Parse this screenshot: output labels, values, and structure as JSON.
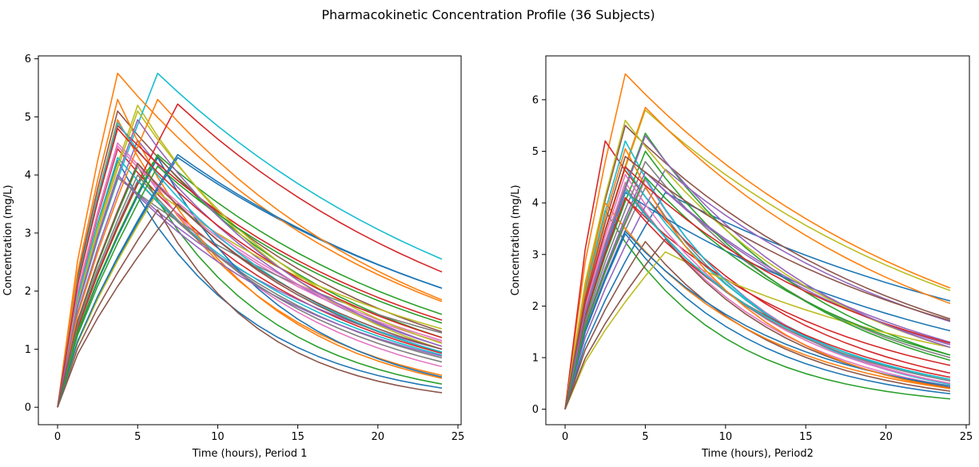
{
  "figure": {
    "title": "Pharmacokinetic Concentration Profile (36 Subjects)"
  },
  "palette": [
    "#1f77b4",
    "#ff7f0e",
    "#2ca02c",
    "#d62728",
    "#9467bd",
    "#8c564b",
    "#e377c2",
    "#7f7f7f",
    "#bcbd22",
    "#17becf"
  ],
  "chart_data": [
    {
      "type": "line",
      "xlabel": "Time (hours), Period 1",
      "ylabel": "Concentration (mg/L)",
      "xlim": [
        -1.2,
        25.2
      ],
      "ylim": [
        -0.3,
        6.05
      ],
      "xticks": [
        0,
        5,
        10,
        15,
        20,
        25
      ],
      "yticks": [
        0,
        1,
        2,
        3,
        4,
        5,
        6
      ],
      "grid": false,
      "x": [
        0,
        1.25,
        2.5,
        3.75,
        5,
        6.25,
        7.5,
        8.75,
        10,
        11.25,
        12.5,
        13.75,
        15,
        16.25,
        17.5,
        18.75,
        20,
        21.25,
        22.5,
        23.75,
        24
      ],
      "series_count": 36,
      "series": [
        {
          "peak": 4.25,
          "tmax": 3.75,
          "end": 0.33
        },
        {
          "peak": 4.95,
          "tmax": 3.75,
          "end": 0.55
        },
        {
          "peak": 4.4,
          "tmax": 6.0,
          "end": 1.2
        },
        {
          "peak": 4.45,
          "tmax": 3.75,
          "end": 0.93
        },
        {
          "peak": 4.6,
          "tmax": 5.0,
          "end": 1.05
        },
        {
          "peak": 5.1,
          "tmax": 3.75,
          "end": 1.3
        },
        {
          "peak": 4.2,
          "tmax": 5.0,
          "end": 0.7
        },
        {
          "peak": 3.9,
          "tmax": 5.0,
          "end": 0.85
        },
        {
          "peak": 5.2,
          "tmax": 5.0,
          "end": 1.0
        },
        {
          "peak": 5.75,
          "tmax": 6.25,
          "end": 2.55
        },
        {
          "peak": 4.3,
          "tmax": 7.5,
          "end": 2.05
        },
        {
          "peak": 5.75,
          "tmax": 3.75,
          "end": 1.82
        },
        {
          "peak": 4.15,
          "tmax": 5.0,
          "end": 0.4
        },
        {
          "peak": 5.22,
          "tmax": 7.5,
          "end": 2.33
        },
        {
          "peak": 4.0,
          "tmax": 3.75,
          "end": 1.0
        },
        {
          "peak": 3.4,
          "tmax": 6.25,
          "end": 0.25
        },
        {
          "peak": 4.5,
          "tmax": 3.75,
          "end": 1.12
        },
        {
          "peak": 3.95,
          "tmax": 3.75,
          "end": 1.28
        },
        {
          "peak": 3.7,
          "tmax": 6.25,
          "end": 1.35
        },
        {
          "peak": 4.3,
          "tmax": 3.75,
          "end": 0.9
        },
        {
          "peak": 4.3,
          "tmax": 6.25,
          "end": 0.52
        },
        {
          "peak": 5.3,
          "tmax": 3.75,
          "end": 0.5
        },
        {
          "peak": 4.35,
          "tmax": 6.25,
          "end": 1.6
        },
        {
          "peak": 4.85,
          "tmax": 3.75,
          "end": 1.5
        },
        {
          "peak": 4.0,
          "tmax": 3.75,
          "end": 0.88
        },
        {
          "peak": 3.5,
          "tmax": 7.5,
          "end": 0.95
        },
        {
          "peak": 4.55,
          "tmax": 3.75,
          "end": 1.15
        },
        {
          "peak": 4.0,
          "tmax": 5.0,
          "end": 0.78
        },
        {
          "peak": 5.1,
          "tmax": 5.0,
          "end": 1.1
        },
        {
          "peak": 4.9,
          "tmax": 3.75,
          "end": 0.95
        },
        {
          "peak": 4.35,
          "tmax": 7.5,
          "end": 2.05
        },
        {
          "peak": 5.3,
          "tmax": 6.25,
          "end": 1.85
        },
        {
          "peak": 4.15,
          "tmax": 6.25,
          "end": 1.45
        },
        {
          "peak": 4.8,
          "tmax": 3.75,
          "end": 1.2
        },
        {
          "peak": 4.95,
          "tmax": 5.0,
          "end": 1.05
        },
        {
          "peak": 4.2,
          "tmax": 5.0,
          "end": 1.0
        }
      ]
    },
    {
      "type": "line",
      "xlabel": "Time (hours), Period2",
      "ylabel": "Concentration (mg/L)",
      "xlim": [
        -1.2,
        25.2
      ],
      "ylim": [
        -0.3,
        6.85
      ],
      "xticks": [
        0,
        5,
        10,
        15,
        20,
        25
      ],
      "yticks": [
        0,
        1,
        2,
        3,
        4,
        5,
        6
      ],
      "grid": false,
      "x": [
        0,
        1.25,
        2.5,
        3.75,
        5,
        6.25,
        7.5,
        8.75,
        10,
        11.25,
        12.5,
        13.75,
        15,
        16.25,
        17.5,
        18.75,
        20,
        21.25,
        22.5,
        23.75,
        24
      ],
      "series_count": 36,
      "series": [
        {
          "peak": 4.2,
          "tmax": 6.25,
          "end": 2.1
        },
        {
          "peak": 6.5,
          "tmax": 3.75,
          "end": 2.35
        },
        {
          "peak": 3.85,
          "tmax": 2.5,
          "end": 0.2
        },
        {
          "peak": 5.2,
          "tmax": 2.5,
          "end": 0.7
        },
        {
          "peak": 4.6,
          "tmax": 5.0,
          "end": 1.25
        },
        {
          "peak": 5.5,
          "tmax": 3.75,
          "end": 1.75
        },
        {
          "peak": 4.4,
          "tmax": 3.75,
          "end": 0.45
        },
        {
          "peak": 4.3,
          "tmax": 5.0,
          "end": 0.5
        },
        {
          "peak": 5.8,
          "tmax": 5.0,
          "end": 2.3
        },
        {
          "peak": 4.7,
          "tmax": 3.75,
          "end": 0.55
        },
        {
          "peak": 3.4,
          "tmax": 3.75,
          "end": 0.3
        },
        {
          "peak": 5.85,
          "tmax": 5.0,
          "end": 2.05
        },
        {
          "peak": 5.35,
          "tmax": 5.0,
          "end": 1.05
        },
        {
          "peak": 4.1,
          "tmax": 3.75,
          "end": 0.85
        },
        {
          "peak": 4.65,
          "tmax": 6.25,
          "end": 1.7
        },
        {
          "peak": 3.25,
          "tmax": 5.0,
          "end": 0.35
        },
        {
          "peak": 4.45,
          "tmax": 5.0,
          "end": 0.5
        },
        {
          "peak": 4.8,
          "tmax": 5.0,
          "end": 1.0
        },
        {
          "peak": 3.05,
          "tmax": 6.25,
          "end": 1.2
        },
        {
          "peak": 5.2,
          "tmax": 3.75,
          "end": 0.48
        },
        {
          "peak": 4.2,
          "tmax": 3.75,
          "end": 1.52
        },
        {
          "peak": 4.0,
          "tmax": 2.5,
          "end": 0.4
        },
        {
          "peak": 5.0,
          "tmax": 5.0,
          "end": 0.95
        },
        {
          "peak": 4.1,
          "tmax": 3.75,
          "end": 0.62
        },
        {
          "peak": 4.6,
          "tmax": 5.0,
          "end": 1.3
        },
        {
          "peak": 3.3,
          "tmax": 6.25,
          "end": 0.42
        },
        {
          "peak": 4.55,
          "tmax": 3.75,
          "end": 0.5
        },
        {
          "peak": 4.3,
          "tmax": 3.75,
          "end": 0.55
        },
        {
          "peak": 5.6,
          "tmax": 3.75,
          "end": 1.2
        },
        {
          "peak": 4.25,
          "tmax": 3.75,
          "end": 0.58
        },
        {
          "peak": 3.45,
          "tmax": 3.75,
          "end": 0.45
        },
        {
          "peak": 5.05,
          "tmax": 3.75,
          "end": 0.4
        },
        {
          "peak": 4.5,
          "tmax": 5.0,
          "end": 1.05
        },
        {
          "peak": 4.7,
          "tmax": 3.75,
          "end": 1.28
        },
        {
          "peak": 5.3,
          "tmax": 5.0,
          "end": 1.2
        },
        {
          "peak": 4.9,
          "tmax": 3.75,
          "end": 1.72
        }
      ]
    }
  ]
}
